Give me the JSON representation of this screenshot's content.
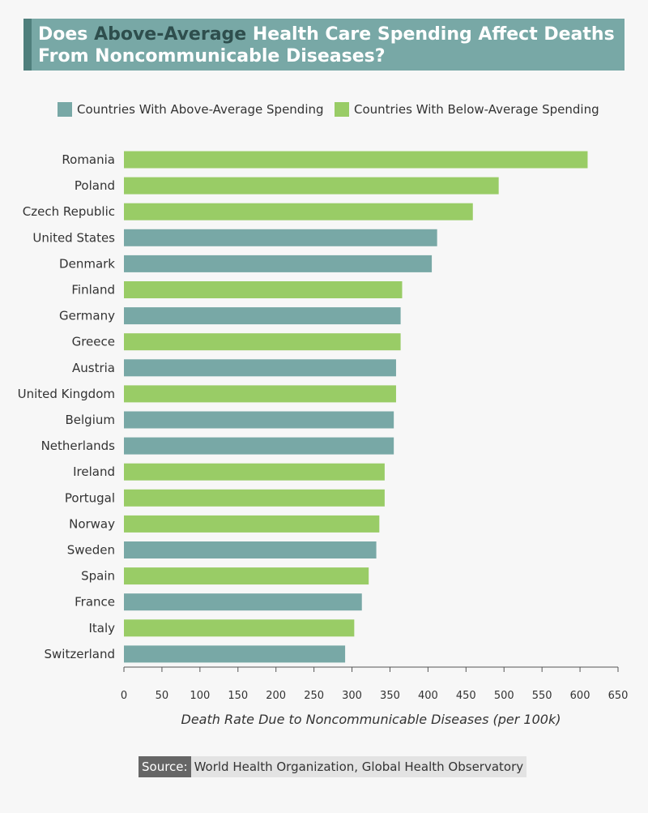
{
  "title": {
    "prefix": "Does ",
    "highlight": "Above-Average",
    "suffix": " Health Care Spending Affect Deaths From Noncommunicable Diseases?"
  },
  "colors": {
    "above": "#78a8a6",
    "below": "#99cc66",
    "title_bg": "#78a8a6",
    "title_accent": "#4f7f7c",
    "axis": "#555555"
  },
  "legend": {
    "above_label": "Countries With Above-Average Spending",
    "below_label": "Countries With Below-Average Spending"
  },
  "source": {
    "label": "Source:",
    "text": "World Health Organization, Global Health Observatory"
  },
  "chart_data": {
    "type": "bar",
    "orientation": "horizontal",
    "title": "Does Above-Average Health Care Spending Affect Deaths From Noncommunicable Diseases?",
    "xlabel": "Death Rate Due to Noncommunicable Diseases (per 100k)",
    "ylabel": "",
    "xlim": [
      0,
      650
    ],
    "xticks": [
      0,
      50,
      100,
      150,
      200,
      250,
      300,
      350,
      400,
      450,
      500,
      550,
      600,
      650
    ],
    "legend_position": "top",
    "categories": [
      "Romania",
      "Poland",
      "Czech Republic",
      "United States",
      "Denmark",
      "Finland",
      "Germany",
      "Greece",
      "Austria",
      "United Kingdom",
      "Belgium",
      "Netherlands",
      "Ireland",
      "Portugal",
      "Norway",
      "Sweden",
      "Spain",
      "France",
      "Italy",
      "Switzerland"
    ],
    "values": [
      610,
      493,
      459,
      412,
      405,
      366,
      364,
      364,
      358,
      358,
      355,
      355,
      343,
      343,
      336,
      332,
      322,
      313,
      303,
      291
    ],
    "groups": [
      "below",
      "below",
      "below",
      "above",
      "above",
      "below",
      "above",
      "below",
      "above",
      "below",
      "above",
      "above",
      "below",
      "below",
      "below",
      "above",
      "below",
      "above",
      "below",
      "above"
    ]
  }
}
